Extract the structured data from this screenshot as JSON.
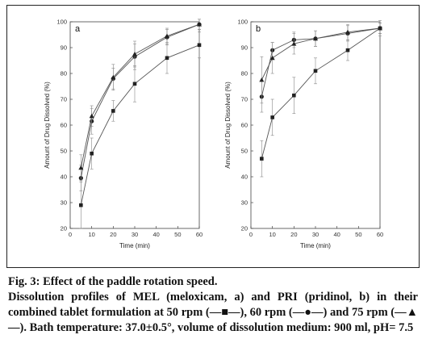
{
  "chart_data": [
    {
      "panel_label": "a",
      "type": "line",
      "xlabel": "Time (min)",
      "ylabel": "Amount of Drug Dissolved (%)",
      "x": [
        5,
        10,
        20,
        30,
        45,
        60
      ],
      "xlim": [
        0,
        60
      ],
      "ylim": [
        20,
        100
      ],
      "xticks": [
        "0",
        "10",
        "20",
        "30",
        "40",
        "50",
        "60"
      ],
      "yticks": [
        "20",
        "30",
        "40",
        "50",
        "60",
        "70",
        "80",
        "90",
        "100"
      ],
      "series": [
        {
          "marker": "square",
          "values": [
            29,
            49,
            65.5,
            76,
            86,
            91
          ],
          "errors": [
            9,
            6,
            4,
            7,
            6,
            5
          ]
        },
        {
          "marker": "circle",
          "values": [
            39.5,
            61.5,
            78,
            86.5,
            94,
            99
          ],
          "errors": [
            5,
            5,
            4,
            5,
            3,
            2
          ]
        },
        {
          "marker": "triangle",
          "values": [
            43.5,
            63.5,
            78.5,
            87.5,
            94.5,
            99
          ],
          "errors": [
            5,
            4,
            5,
            5,
            3,
            2
          ]
        }
      ]
    },
    {
      "panel_label": "b",
      "type": "line",
      "xlabel": "Time (min)",
      "ylabel": "Amount of Drug Dissolved (%)",
      "x": [
        5,
        10,
        20,
        30,
        45,
        60
      ],
      "xlim": [
        0,
        60
      ],
      "ylim": [
        20,
        100
      ],
      "xticks": [
        "0",
        "10",
        "20",
        "30",
        "40",
        "50",
        "60"
      ],
      "yticks": [
        "20",
        "30",
        "40",
        "50",
        "60",
        "70",
        "80",
        "90",
        "100"
      ],
      "series": [
        {
          "marker": "square",
          "values": [
            47,
            63,
            71.5,
            81,
            89,
            97.5
          ],
          "errors": [
            7,
            7,
            7,
            5,
            4,
            3
          ]
        },
        {
          "marker": "circle",
          "values": [
            71,
            89,
            93,
            93.5,
            95.5,
            97.5
          ],
          "errors": [
            6,
            3,
            3,
            3,
            3,
            2
          ]
        },
        {
          "marker": "triangle",
          "values": [
            77.5,
            86,
            91.5,
            93.5,
            96,
            97.5
          ],
          "errors": [
            9,
            6,
            4,
            3,
            3,
            2
          ]
        }
      ]
    }
  ],
  "caption": {
    "title": "Fig. 3: Effect of the paddle rotation speed.",
    "body": "Dissolution profiles of MEL (meloxicam, a) and PRI (pridinol, b) in their combined tablet formulation at 50 rpm (—■—), 60 rpm (—●—) and 75 rpm (—▲—). Bath temperature: 37.0±0.5°, volume of dissolution medium: 900 ml, pH= 7.5"
  }
}
